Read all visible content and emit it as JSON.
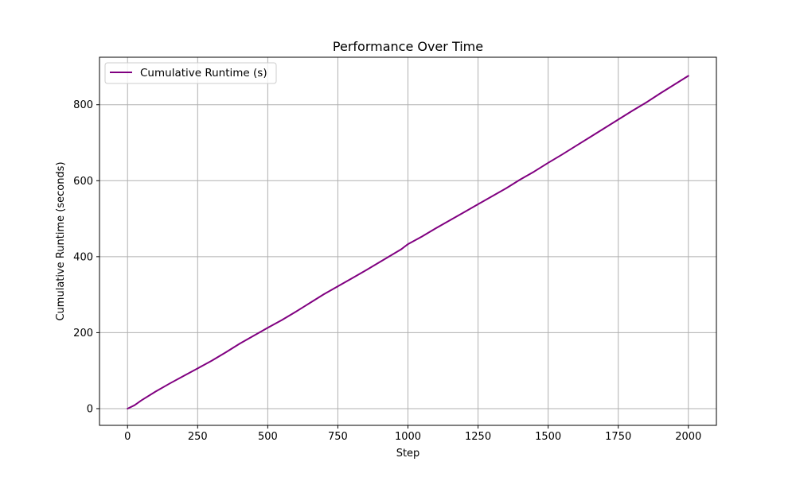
{
  "chart_data": {
    "type": "line",
    "title": "Performance Over Time",
    "xlabel": "Step",
    "ylabel": "Cumulative Runtime (seconds)",
    "xlim": [
      -100,
      2100
    ],
    "ylim": [
      -44,
      925
    ],
    "xticks": [
      0,
      250,
      500,
      750,
      1000,
      1250,
      1500,
      1750,
      2000
    ],
    "yticks": [
      0,
      200,
      400,
      600,
      800
    ],
    "grid": true,
    "legend_position": "top-left",
    "series": [
      {
        "name": "Cumulative Runtime (s)",
        "color": "#800080",
        "x": [
          0,
          25,
          50,
          100,
          150,
          200,
          250,
          300,
          350,
          400,
          450,
          500,
          550,
          600,
          650,
          700,
          750,
          800,
          850,
          900,
          950,
          975,
          1000,
          1050,
          1100,
          1150,
          1200,
          1250,
          1300,
          1350,
          1400,
          1450,
          1500,
          1550,
          1600,
          1650,
          1700,
          1750,
          1800,
          1850,
          1900,
          1950,
          2000
        ],
        "y": [
          0,
          9,
          22,
          45,
          66,
          86,
          106,
          126,
          148,
          171,
          192,
          213,
          233,
          255,
          278,
          301,
          322,
          343,
          364,
          386,
          408,
          419,
          433,
          453,
          475,
          496,
          517,
          538,
          559,
          580,
          603,
          624,
          647,
          669,
          692,
          715,
          738,
          761,
          784,
          806,
          830,
          853,
          876
        ]
      }
    ]
  }
}
